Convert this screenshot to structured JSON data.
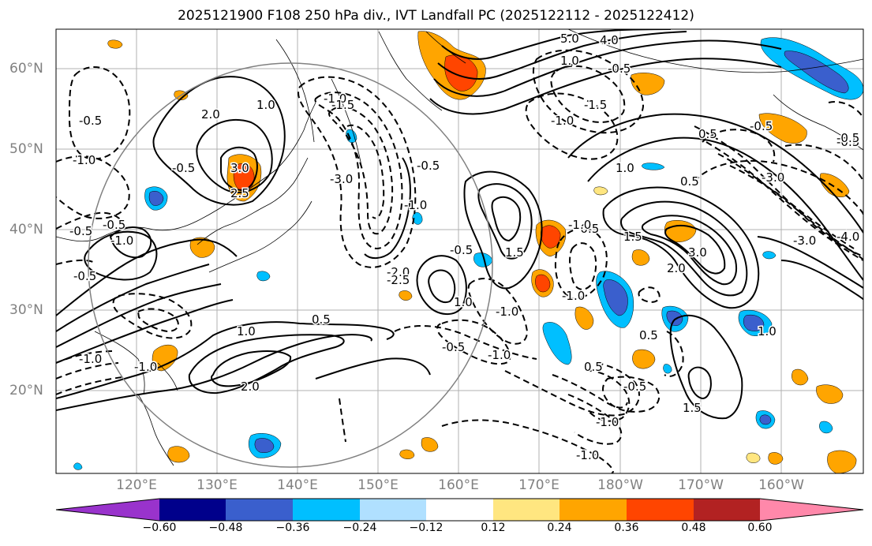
{
  "title": "2025121900 F108 250 hPa div., IVT Landfall PC (2025122112 - 2025122412)",
  "lat_labels": [
    "60°N",
    "50°N",
    "40°N",
    "30°N",
    "20°N"
  ],
  "lon_labels": [
    "120°E",
    "130°E",
    "140°E",
    "150°E",
    "160°E",
    "170°E",
    "180°W",
    "170°W",
    "160°W"
  ],
  "colorbar": {
    "ticks": [
      "−0.60",
      "−0.48",
      "−0.36",
      "−0.24",
      "−0.12",
      "0.12",
      "0.24",
      "0.36",
      "0.48",
      "0.60"
    ],
    "colors": [
      "#9933cc",
      "#00008b",
      "#3a5fcd",
      "#00bfff",
      "#b0e0ff",
      "#ffffff",
      "#ffe680",
      "#ffa500",
      "#ff4500",
      "#b22222",
      "#ff88aa"
    ]
  },
  "contour_labels": {
    "positive": [
      "5.0",
      "4.0",
      "1.0",
      "2.0",
      "3.0",
      "1.0",
      "2.5",
      "1.0",
      "0.5",
      "1.0",
      "2.0",
      "1.5",
      "3.0",
      "2.0",
      "1.0",
      "0.5",
      "1.0",
      "1.5",
      "0.5",
      "3.0",
      "0.5",
      "1.5",
      "0.5"
    ],
    "negative": [
      "-0.5",
      "-1.5",
      "-1.0",
      "-0.5",
      "-1.0",
      "-1.0",
      "-0.5",
      "-3.0",
      "-0.5",
      "-1.0",
      "-2.0",
      "-0.5",
      "-1.5",
      "-0.5",
      "-1.0",
      "-0.5",
      "-1.0",
      "-0.5",
      "-1.0",
      "-0.5",
      "-1.0",
      "-1.0",
      "-0.5",
      "-3.0",
      "-4.0",
      "-3.0",
      "-0.5",
      "-1.0",
      "-2.5",
      "-1.0",
      "-0.5",
      "-1.0",
      "-0.5",
      "-0.5",
      "-1.0"
    ]
  }
}
